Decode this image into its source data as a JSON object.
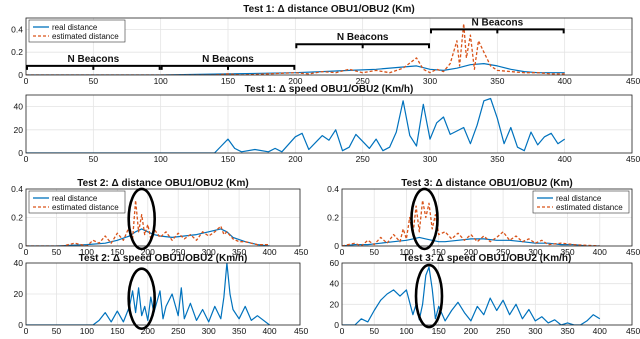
{
  "figure": {
    "colors": {
      "real": "#0072BD",
      "estimated": "#D95319",
      "grid": "#e4e4e4"
    }
  },
  "chart_data": [
    {
      "id": "test1-distance",
      "type": "line",
      "title": "Test 1: Δ distance OBU1/OBU2 (Km)",
      "xlim": [
        0,
        450
      ],
      "ylim": [
        0,
        0.5
      ],
      "xticks": [
        "0",
        "50",
        "100",
        "150",
        "200",
        "250",
        "300",
        "350",
        "400",
        "450"
      ],
      "yticks": [
        "0",
        "0.2",
        "0.4"
      ],
      "ytick_values": [
        0,
        0.2,
        0.4
      ],
      "legend": {
        "position": "top-left",
        "entries": [
          "real distance",
          "estimated distance"
        ]
      },
      "annotations": [
        {
          "text": "N Beacons",
          "x_from": 0,
          "x_to": 100,
          "y": 0.08
        },
        {
          "text": "N Beacons",
          "x_from": 100,
          "x_to": 200,
          "y": 0.08
        },
        {
          "text": "N Beacons",
          "x_from": 200,
          "x_to": 300,
          "y": 0.27
        },
        {
          "text": "N Beacons",
          "x_from": 300,
          "x_to": 400,
          "y": 0.4
        }
      ],
      "series": [
        {
          "name": "real distance",
          "style": "solid",
          "x": [
            0,
            100,
            150,
            200,
            220,
            240,
            260,
            280,
            290,
            300,
            310,
            320,
            330,
            340,
            350,
            360,
            370,
            380,
            390,
            400
          ],
          "y": [
            0,
            0,
            0.01,
            0.02,
            0.03,
            0.04,
            0.05,
            0.07,
            0.08,
            0.05,
            0.04,
            0.06,
            0.09,
            0.1,
            0.08,
            0.05,
            0.03,
            0.02,
            0.02,
            0.02
          ]
        },
        {
          "name": "estimated distance",
          "style": "dashed",
          "x": [
            0,
            140,
            150,
            160,
            200,
            210,
            220,
            230,
            240,
            250,
            260,
            270,
            280,
            290,
            295,
            300,
            305,
            310,
            315,
            320,
            322,
            325,
            327,
            330,
            333,
            336,
            340,
            345,
            350,
            360,
            370,
            380,
            390,
            400
          ],
          "y": [
            0,
            0,
            0.01,
            0,
            0.02,
            0.01,
            0.03,
            0.02,
            0.05,
            0.02,
            0.04,
            0.02,
            0.06,
            0.15,
            0.05,
            0.02,
            0.05,
            0.03,
            0.1,
            0.3,
            0.08,
            0.45,
            0.15,
            0.35,
            0.05,
            0.3,
            0.2,
            0.08,
            0.04,
            0.03,
            0.02,
            0.02,
            0.01,
            0.01
          ]
        }
      ]
    },
    {
      "id": "test1-speed",
      "type": "line",
      "title": "Test 1: Δ speed OBU1/OBU2 (Km/h)",
      "xlim": [
        0,
        450
      ],
      "ylim": [
        0,
        50
      ],
      "xticks": [
        "0",
        "50",
        "100",
        "150",
        "200",
        "250",
        "300",
        "350",
        "400",
        "450"
      ],
      "yticks": [
        "0",
        "20",
        "40"
      ],
      "ytick_values": [
        0,
        20,
        40
      ],
      "series": [
        {
          "name": "",
          "style": "solid",
          "x": [
            0,
            140,
            145,
            150,
            155,
            160,
            170,
            180,
            185,
            190,
            200,
            205,
            210,
            215,
            220,
            225,
            230,
            235,
            240,
            245,
            250,
            255,
            260,
            265,
            270,
            275,
            280,
            285,
            290,
            295,
            300,
            305,
            310,
            315,
            320,
            325,
            330,
            335,
            340,
            345,
            350,
            355,
            360,
            365,
            370,
            375,
            380,
            385,
            390,
            395,
            400
          ],
          "y": [
            0,
            0,
            6,
            12,
            4,
            1,
            3,
            1,
            4,
            1,
            14,
            17,
            3,
            9,
            15,
            11,
            20,
            2,
            5,
            16,
            10,
            4,
            12,
            2,
            5,
            18,
            45,
            15,
            6,
            42,
            12,
            26,
            31,
            16,
            19,
            22,
            8,
            24,
            45,
            47,
            30,
            8,
            22,
            5,
            2,
            18,
            7,
            14,
            17,
            8,
            12
          ]
        }
      ]
    },
    {
      "id": "test2-distance",
      "type": "line",
      "title": "Test 2: Δ distance OBU1/OBU2 (Km)",
      "xlim": [
        0,
        450
      ],
      "ylim": [
        0,
        0.4
      ],
      "xticks": [
        "0",
        "50",
        "100",
        "150",
        "200",
        "250",
        "300",
        "350",
        "400",
        "450"
      ],
      "yticks": [
        "0",
        "0.2",
        "0.4"
      ],
      "ytick_values": [
        0,
        0.2,
        0.4
      ],
      "legend": {
        "position": "top-left",
        "entries": [
          "real distance",
          "estimated distance"
        ]
      },
      "series": [
        {
          "name": "real distance",
          "style": "solid",
          "x": [
            0,
            50,
            100,
            130,
            150,
            170,
            180,
            190,
            200,
            210,
            220,
            240,
            260,
            280,
            300,
            320,
            330,
            340,
            360,
            380,
            400
          ],
          "y": [
            0,
            0,
            0.01,
            0.02,
            0.04,
            0.07,
            0.1,
            0.12,
            0.1,
            0.08,
            0.07,
            0.06,
            0.07,
            0.08,
            0.1,
            0.12,
            0.1,
            0.06,
            0.03,
            0.01,
            0
          ]
        },
        {
          "name": "estimated distance",
          "style": "dashed",
          "x": [
            0,
            60,
            80,
            100,
            110,
            120,
            130,
            140,
            150,
            160,
            170,
            175,
            180,
            185,
            190,
            195,
            200,
            205,
            210,
            220,
            230,
            240,
            250,
            260,
            270,
            280,
            290,
            300,
            310,
            320,
            325,
            330,
            340,
            350,
            360,
            370,
            380,
            400
          ],
          "y": [
            0,
            0,
            0.02,
            0,
            0.04,
            0.02,
            0.07,
            0.02,
            0.09,
            0.04,
            0.14,
            0.05,
            0.32,
            0.1,
            0.22,
            0.08,
            0.15,
            0.05,
            0.12,
            0.06,
            0.1,
            0.04,
            0.09,
            0.05,
            0.08,
            0.04,
            0.1,
            0.07,
            0.1,
            0.14,
            0.08,
            0.1,
            0.05,
            0.03,
            0.03,
            0.02,
            0.01,
            0.01
          ]
        }
      ]
    },
    {
      "id": "test3-distance",
      "type": "line",
      "title": "Test 3: Δ distance OBU1/OBU2 (Km)",
      "xlim": [
        0,
        450
      ],
      "ylim": [
        0,
        0.4
      ],
      "xticks": [
        "0",
        "50",
        "100",
        "150",
        "200",
        "250",
        "300",
        "350",
        "400",
        "450"
      ],
      "yticks": [
        "0",
        "0.2",
        "0.4"
      ],
      "ytick_values": [
        0,
        0.2,
        0.4
      ],
      "legend": {
        "position": "top-right",
        "entries": [
          "real distance",
          "estimated distance"
        ]
      },
      "series": [
        {
          "name": "real distance",
          "style": "solid",
          "x": [
            0,
            20,
            40,
            60,
            80,
            100,
            110,
            120,
            130,
            140,
            150,
            160,
            180,
            200,
            220,
            240,
            260,
            280,
            300,
            320,
            340,
            360,
            380,
            400
          ],
          "y": [
            0,
            0.01,
            0.01,
            0.02,
            0.03,
            0.04,
            0.05,
            0.06,
            0.05,
            0.04,
            0.03,
            0.03,
            0.04,
            0.05,
            0.05,
            0.04,
            0.04,
            0.03,
            0.02,
            0.02,
            0.01,
            0.01,
            0,
            0
          ]
        },
        {
          "name": "estimated distance",
          "style": "dashed",
          "x": [
            0,
            20,
            30,
            40,
            50,
            60,
            70,
            80,
            90,
            95,
            100,
            105,
            110,
            115,
            120,
            125,
            130,
            135,
            140,
            145,
            150,
            160,
            170,
            180,
            190,
            200,
            210,
            220,
            230,
            240,
            250,
            260,
            270,
            280,
            290,
            300,
            310,
            320,
            340,
            360,
            400
          ],
          "y": [
            0,
            0.02,
            0,
            0.04,
            0.01,
            0.06,
            0.02,
            0.08,
            0.03,
            0.12,
            0.05,
            0.2,
            0.08,
            0.28,
            0.1,
            0.32,
            0.2,
            0.3,
            0.12,
            0.22,
            0.08,
            0.1,
            0.05,
            0.09,
            0.04,
            0.08,
            0.03,
            0.07,
            0.03,
            0.06,
            0.1,
            0.04,
            0.07,
            0.03,
            0.05,
            0.02,
            0.04,
            0.01,
            0.02,
            0.01,
            0
          ]
        }
      ]
    },
    {
      "id": "test2-speed",
      "type": "line",
      "title": "Test 2: Δ speed OBU1/OBU2 (Km/h)",
      "xlim": [
        0,
        450
      ],
      "ylim": [
        0,
        40
      ],
      "xticks": [
        "0",
        "50",
        "100",
        "150",
        "200",
        "250",
        "300",
        "350",
        "400",
        "450"
      ],
      "yticks": [
        "0",
        "20",
        "40"
      ],
      "ytick_values": [
        0,
        20,
        40
      ],
      "series": [
        {
          "name": "",
          "style": "solid",
          "x": [
            0,
            110,
            120,
            130,
            140,
            150,
            160,
            170,
            175,
            180,
            185,
            190,
            195,
            200,
            205,
            210,
            220,
            225,
            230,
            240,
            250,
            255,
            260,
            270,
            280,
            290,
            300,
            310,
            320,
            325,
            330,
            335,
            340,
            350,
            360,
            370,
            380,
            400
          ],
          "y": [
            0,
            0,
            3,
            8,
            2,
            9,
            2,
            12,
            22,
            8,
            24,
            6,
            12,
            3,
            18,
            8,
            22,
            4,
            12,
            20,
            6,
            24,
            4,
            14,
            3,
            10,
            2,
            12,
            4,
            18,
            40,
            20,
            10,
            4,
            12,
            3,
            6,
            0
          ]
        }
      ]
    },
    {
      "id": "test3-speed",
      "type": "line",
      "title": "Test 3: Δ speed OBU1/OBU2 (Km/h)",
      "xlim": [
        0,
        450
      ],
      "ylim": [
        0,
        60
      ],
      "xticks": [
        "0",
        "50",
        "100",
        "150",
        "200",
        "250",
        "300",
        "350",
        "400",
        "450"
      ],
      "yticks": [
        "0",
        "20",
        "40",
        "60"
      ],
      "ytick_values": [
        0,
        20,
        40,
        60
      ],
      "series": [
        {
          "name": "",
          "style": "solid",
          "x": [
            0,
            20,
            30,
            40,
            50,
            60,
            70,
            80,
            90,
            100,
            110,
            115,
            120,
            125,
            130,
            135,
            140,
            145,
            150,
            160,
            170,
            180,
            190,
            200,
            210,
            220,
            230,
            240,
            250,
            260,
            270,
            280,
            290,
            300,
            310,
            320,
            330,
            340,
            350,
            360,
            370,
            380,
            390,
            400
          ],
          "y": [
            0,
            0,
            6,
            3,
            14,
            24,
            30,
            34,
            28,
            34,
            10,
            20,
            5,
            20,
            48,
            56,
            35,
            6,
            18,
            4,
            14,
            22,
            12,
            4,
            18,
            10,
            26,
            14,
            24,
            10,
            20,
            6,
            15,
            4,
            8,
            2,
            5,
            0,
            2,
            0,
            0,
            4,
            10,
            6
          ]
        }
      ]
    }
  ]
}
